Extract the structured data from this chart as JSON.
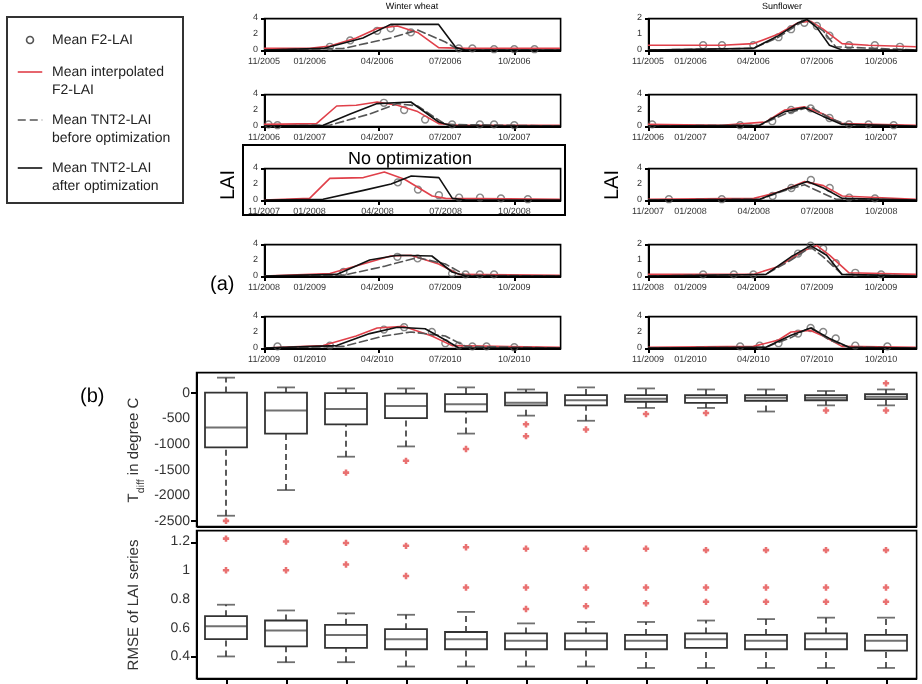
{
  "chart_data": [
    {
      "type": "line",
      "title": "Winter wheat",
      "legend": "left",
      "xlim": [
        "2005-11-01",
        "2006-12-01"
      ],
      "xticks": [
        {
          "value": "2005-11",
          "label": "11/2005"
        },
        {
          "value": "2006-01",
          "label": "01/2006"
        },
        {
          "value": "2006-04",
          "label": "04/2006"
        },
        {
          "value": "2006-07",
          "label": "07/2006"
        },
        {
          "value": "2006-10",
          "label": "10/2006"
        }
      ],
      "ylim": [
        0,
        4
      ],
      "yticks": [
        0,
        2,
        4
      ],
      "series": [
        {
          "name": "Mean F2-LAI",
          "type": "scatter",
          "marker": "circle",
          "color": "#555555",
          "x": [
            "2006-01-28",
            "2006-02-24",
            "2006-04-01",
            "2006-04-19",
            "2006-05-16",
            "2006-07-19",
            "2006-08-06",
            "2006-09-04",
            "2006-10-01",
            "2006-10-28"
          ],
          "values": [
            0.4,
            1.2,
            2.4,
            2.7,
            2.2,
            0.2,
            0.2,
            0.1,
            0.1,
            0.1
          ]
        },
        {
          "name": "Mean interpolated F2-LAI",
          "type": "line",
          "line_style": "solid",
          "color": "#e0404a",
          "x": [
            "2005-11-01",
            "2006-01-01",
            "2006-01-28",
            "2006-03-04",
            "2006-04-01",
            "2006-04-28",
            "2006-05-25",
            "2006-06-22",
            "2006-07-28",
            "2006-12-01"
          ],
          "values": [
            0.2,
            0.2,
            0.5,
            1.5,
            2.7,
            3.0,
            2.2,
            0.3,
            0.2,
            0.2
          ]
        },
        {
          "name": "Mean TNT2-LAI before optimization",
          "type": "line",
          "line_style": "dashed",
          "color": "#555555",
          "x": [
            "2005-11-01",
            "2006-02-15",
            "2006-04-19",
            "2006-05-25",
            "2006-07-01",
            "2006-07-19",
            "2006-12-01"
          ],
          "values": [
            0,
            0.2,
            1.5,
            2.5,
            1.0,
            0,
            0
          ]
        },
        {
          "name": "Mean TNT2-LAI after optimization",
          "type": "line",
          "line_style": "solid",
          "color": "#111111",
          "x": [
            "2005-11-01",
            "2006-01-19",
            "2006-03-13",
            "2006-04-19",
            "2006-06-22",
            "2006-07-15",
            "2006-07-28",
            "2006-12-01"
          ],
          "values": [
            0,
            0.2,
            1.5,
            3.2,
            3.2,
            0.3,
            0,
            0
          ]
        }
      ]
    },
    {
      "type": "line",
      "title": "Sunflower",
      "xlim": [
        "2005-11-01",
        "2006-11-20"
      ],
      "xticks": [
        {
          "value": "2005-11",
          "label": "11/2005"
        },
        {
          "value": "2006-01",
          "label": "01/2006"
        },
        {
          "value": "2006-04",
          "label": "04/2006"
        },
        {
          "value": "2006-07",
          "label": "07/2006"
        },
        {
          "value": "2006-10",
          "label": "10/2006"
        }
      ],
      "ylim": [
        0,
        2
      ],
      "yticks": [
        0,
        1,
        2
      ],
      "series": [
        {
          "type": "scatter",
          "marker": "circle",
          "color": "#555555",
          "x": [
            "2006-01-19",
            "2006-02-15",
            "2006-04-01",
            "2006-05-07",
            "2006-05-25",
            "2006-06-13",
            "2006-07-01",
            "2006-07-19",
            "2006-08-16",
            "2006-09-22",
            "2006-10-28"
          ],
          "values": [
            0.3,
            0.3,
            0.3,
            0.8,
            1.3,
            1.7,
            1.5,
            0.9,
            0.3,
            0.3,
            0.2
          ]
        },
        {
          "type": "line",
          "line_style": "solid",
          "color": "#e0404a",
          "x": [
            "2005-11-01",
            "2006-02-15",
            "2006-04-01",
            "2006-05-07",
            "2006-06-04",
            "2006-06-22",
            "2006-07-10",
            "2006-08-06",
            "2006-09-13",
            "2006-11-20"
          ],
          "values": [
            0.3,
            0.3,
            0.4,
            1.0,
            1.7,
            1.8,
            1.3,
            0.4,
            0.3,
            0.2
          ]
        },
        {
          "type": "line",
          "line_style": "dashed",
          "color": "#555555",
          "x": [
            "2005-11-01",
            "2006-04-01",
            "2006-05-07",
            "2006-06-04",
            "2006-06-17",
            "2006-07-10",
            "2006-07-28",
            "2006-11-20"
          ],
          "values": [
            0,
            0.1,
            0.8,
            1.6,
            1.9,
            1.2,
            0.2,
            0
          ]
        },
        {
          "type": "line",
          "line_style": "solid",
          "color": "#111111",
          "x": [
            "2005-11-01",
            "2006-04-01",
            "2006-05-07",
            "2006-06-04",
            "2006-06-17",
            "2006-07-01",
            "2006-07-19",
            "2006-08-06",
            "2006-11-20"
          ],
          "values": [
            0,
            0.1,
            0.9,
            1.7,
            1.9,
            1.4,
            0.3,
            0,
            0
          ]
        }
      ]
    },
    {
      "type": "line",
      "xlim": [
        "2006-11-01",
        "2007-12-01"
      ],
      "xticks": [
        {
          "value": "2006-11",
          "label": "11/2006"
        },
        {
          "value": "2007-01",
          "label": "01/2007"
        },
        {
          "value": "2007-04",
          "label": "04/2007"
        },
        {
          "value": "2007-07",
          "label": "07/2007"
        },
        {
          "value": "2007-10",
          "label": "10/2007"
        }
      ],
      "ylim": [
        0,
        4
      ],
      "yticks": [
        0,
        2,
        4
      ],
      "series": [
        {
          "type": "scatter",
          "marker": "circle",
          "color": "#555555",
          "x": [
            "2006-11-07",
            "2006-11-19",
            "2007-04-10",
            "2007-05-07",
            "2007-06-04",
            "2007-07-10",
            "2007-08-16",
            "2007-09-04",
            "2007-10-01"
          ],
          "values": [
            0.2,
            0.1,
            2.9,
            2.0,
            0.8,
            0.2,
            0.2,
            0.2,
            0.1
          ]
        },
        {
          "type": "line",
          "line_style": "solid",
          "color": "#e0404a",
          "x": [
            "2006-11-01",
            "2007-01-10",
            "2007-02-06",
            "2007-03-04",
            "2007-04-01",
            "2007-04-28",
            "2007-05-25",
            "2007-06-22",
            "2007-07-19",
            "2007-12-01"
          ],
          "values": [
            0.2,
            0.3,
            2.5,
            2.6,
            3.0,
            2.6,
            1.8,
            0.3,
            0.1,
            0.1
          ]
        },
        {
          "type": "line",
          "line_style": "dashed",
          "color": "#555555",
          "x": [
            "2006-11-01",
            "2007-01-28",
            "2007-03-22",
            "2007-04-28",
            "2007-05-25",
            "2007-07-01",
            "2007-12-01"
          ],
          "values": [
            0,
            0.1,
            1.5,
            2.8,
            2.5,
            0.2,
            0
          ]
        },
        {
          "type": "line",
          "line_style": "solid",
          "color": "#111111",
          "x": [
            "2006-11-01",
            "2007-01-19",
            "2007-02-24",
            "2007-04-01",
            "2007-05-16",
            "2007-06-22",
            "2007-07-10",
            "2007-12-01"
          ],
          "values": [
            0,
            0.1,
            1.5,
            2.8,
            3.0,
            0.5,
            0,
            0
          ]
        }
      ]
    },
    {
      "type": "line",
      "xlim": [
        "2006-11-01",
        "2007-11-20"
      ],
      "xticks": [
        {
          "value": "2006-11",
          "label": "11/2006"
        },
        {
          "value": "2007-01",
          "label": "01/2007"
        },
        {
          "value": "2007-04",
          "label": "04/2007"
        },
        {
          "value": "2007-07",
          "label": "07/2007"
        },
        {
          "value": "2007-10",
          "label": "10/2007"
        }
      ],
      "ylim": [
        0,
        4
      ],
      "yticks": [
        0,
        2,
        4
      ],
      "series": [
        {
          "type": "scatter",
          "marker": "circle",
          "color": "#555555",
          "x": [
            "2006-11-07",
            "2007-03-13",
            "2007-04-28",
            "2007-05-25",
            "2007-06-22",
            "2007-07-19",
            "2007-08-16",
            "2007-09-13",
            "2007-10-19"
          ],
          "values": [
            0.2,
            0.1,
            0.6,
            2.0,
            2.2,
            1.0,
            0.2,
            0.2,
            0.1
          ]
        },
        {
          "type": "line",
          "line_style": "solid",
          "color": "#e0404a",
          "x": [
            "2006-11-01",
            "2007-02-15",
            "2007-04-19",
            "2007-05-16",
            "2007-06-13",
            "2007-07-10",
            "2007-08-06",
            "2007-11-20"
          ],
          "values": [
            0.2,
            0.1,
            0.5,
            2.0,
            2.4,
            1.5,
            0.3,
            0.1
          ]
        },
        {
          "type": "line",
          "line_style": "dashed",
          "color": "#555555",
          "x": [
            "2006-11-01",
            "2007-04-10",
            "2007-05-16",
            "2007-06-22",
            "2007-07-19",
            "2007-08-16",
            "2007-11-20"
          ],
          "values": [
            0,
            0.1,
            1.5,
            2.4,
            1.0,
            0.1,
            0
          ]
        },
        {
          "type": "line",
          "line_style": "solid",
          "color": "#111111",
          "x": [
            "2006-11-01",
            "2007-04-10",
            "2007-05-16",
            "2007-06-13",
            "2007-07-10",
            "2007-08-06",
            "2007-11-20"
          ],
          "values": [
            0,
            0.1,
            1.8,
            2.3,
            1.2,
            0.2,
            0
          ]
        }
      ]
    },
    {
      "type": "line",
      "ylabel": "LAI",
      "annotations": [
        "No optimization"
      ],
      "xlim": [
        "2007-11-01",
        "2008-12-01"
      ],
      "xticks": [
        {
          "value": "2007-11",
          "label": "11/2007"
        },
        {
          "value": "2008-01",
          "label": "01/2008"
        },
        {
          "value": "2008-04",
          "label": "04/2008"
        },
        {
          "value": "2008-07",
          "label": "07/2008"
        },
        {
          "value": "2008-10",
          "label": "10/2008"
        }
      ],
      "ylim": [
        0,
        4
      ],
      "yticks": [
        0,
        2,
        4
      ],
      "series": [
        {
          "type": "scatter",
          "marker": "circle",
          "color": "#555555",
          "x": [
            "2008-04-28",
            "2008-05-25",
            "2008-06-22",
            "2008-07-19",
            "2008-08-16",
            "2008-09-13",
            "2008-10-19"
          ],
          "values": [
            2.2,
            1.3,
            0.6,
            0.3,
            0.3,
            0.2,
            0.1
          ]
        },
        {
          "type": "line",
          "line_style": "solid",
          "color": "#e0404a",
          "x": [
            "2007-11-01",
            "2008-01-01",
            "2008-01-28",
            "2008-03-13",
            "2008-04-10",
            "2008-05-07",
            "2008-06-13",
            "2008-07-01",
            "2008-12-01"
          ],
          "values": [
            0,
            0.2,
            2.7,
            2.8,
            3.5,
            2.6,
            0.5,
            0.2,
            0.1
          ]
        },
        {
          "type": "line",
          "line_style": "solid",
          "color": "#111111",
          "x": [
            "2007-11-01",
            "2008-01-19",
            "2008-03-13",
            "2008-04-19",
            "2008-05-16",
            "2008-06-22",
            "2008-07-10",
            "2008-07-28",
            "2008-12-01"
          ],
          "values": [
            0,
            0.1,
            1.2,
            2.0,
            3.0,
            2.8,
            0.2,
            0,
            0
          ]
        }
      ]
    },
    {
      "type": "line",
      "ylabel": "LAI",
      "xlim": [
        "2007-11-01",
        "2008-11-20"
      ],
      "xticks": [
        {
          "value": "2007-11",
          "label": "11/2007"
        },
        {
          "value": "2008-01",
          "label": "01/2008"
        },
        {
          "value": "2008-04",
          "label": "04/2008"
        },
        {
          "value": "2008-07",
          "label": "07/2008"
        },
        {
          "value": "2008-10",
          "label": "10/2008"
        }
      ],
      "ylim": [
        0,
        4
      ],
      "yticks": [
        0,
        2,
        4
      ],
      "series": [
        {
          "type": "scatter",
          "marker": "circle",
          "color": "#555555",
          "x": [
            "2007-12-01",
            "2008-02-15",
            "2008-04-28",
            "2008-05-25",
            "2008-06-22",
            "2008-07-19",
            "2008-08-16",
            "2008-09-22"
          ],
          "values": [
            0.1,
            0.1,
            0.5,
            1.5,
            2.5,
            1.5,
            0.3,
            0.2
          ]
        },
        {
          "type": "line",
          "line_style": "solid",
          "color": "#e0404a",
          "x": [
            "2007-11-01",
            "2008-04-01",
            "2008-05-07",
            "2008-06-13",
            "2008-07-10",
            "2008-08-06",
            "2008-11-20"
          ],
          "values": [
            0.1,
            0.2,
            1.0,
            2.3,
            1.8,
            0.5,
            0.1
          ]
        },
        {
          "type": "line",
          "line_style": "dashed",
          "color": "#555555",
          "x": [
            "2007-11-01",
            "2008-04-10",
            "2008-05-16",
            "2008-06-13",
            "2008-07-10",
            "2008-07-28",
            "2008-11-20"
          ],
          "values": [
            0,
            0.1,
            1.2,
            1.9,
            0.8,
            0.1,
            0
          ]
        },
        {
          "type": "line",
          "line_style": "solid",
          "color": "#111111",
          "x": [
            "2007-11-01",
            "2008-04-10",
            "2008-05-16",
            "2008-06-17",
            "2008-07-10",
            "2008-08-06",
            "2008-11-20"
          ],
          "values": [
            0,
            0.1,
            1.3,
            2.3,
            1.5,
            0.2,
            0
          ]
        }
      ]
    },
    {
      "type": "line",
      "annotations": [
        "(a)"
      ],
      "xlim": [
        "2008-11-01",
        "2009-12-01"
      ],
      "xticks": [
        {
          "value": "2008-11",
          "label": "11/2008"
        },
        {
          "value": "2009-01",
          "label": "01/2009"
        },
        {
          "value": "2009-04",
          "label": "04/2009"
        },
        {
          "value": "2009-07",
          "label": "07/2009"
        },
        {
          "value": "2009-10",
          "label": "10/2009"
        }
      ],
      "ylim": [
        0,
        4
      ],
      "yticks": [
        0,
        2,
        4
      ],
      "series": [
        {
          "type": "scatter",
          "marker": "circle",
          "color": "#555555",
          "x": [
            "2009-02-15",
            "2009-04-28",
            "2009-05-25",
            "2009-07-10",
            "2009-07-28",
            "2009-08-16",
            "2009-09-04"
          ],
          "values": [
            0.5,
            2.4,
            2.2,
            0.3,
            0.2,
            0.2,
            0.2
          ]
        },
        {
          "type": "line",
          "line_style": "solid",
          "color": "#e0404a",
          "x": [
            "2008-11-01",
            "2009-01-28",
            "2009-03-13",
            "2009-04-19",
            "2009-05-16",
            "2009-06-22",
            "2009-07-19",
            "2009-12-01"
          ],
          "values": [
            0,
            0.3,
            1.5,
            2.5,
            2.6,
            1.5,
            0.2,
            0.1
          ]
        },
        {
          "type": "line",
          "line_style": "dashed",
          "color": "#555555",
          "x": [
            "2008-11-01",
            "2009-02-15",
            "2009-04-10",
            "2009-05-25",
            "2009-07-01",
            "2009-07-28",
            "2009-12-01"
          ],
          "values": [
            0,
            0.1,
            1.2,
            2.3,
            1.5,
            0.1,
            0
          ]
        },
        {
          "type": "line",
          "line_style": "solid",
          "color": "#111111",
          "x": [
            "2008-11-01",
            "2009-02-06",
            "2009-03-22",
            "2009-04-28",
            "2009-06-13",
            "2009-07-10",
            "2009-07-28",
            "2009-12-01"
          ],
          "values": [
            0,
            0.2,
            2.0,
            2.6,
            2.5,
            0.5,
            0,
            0
          ]
        }
      ]
    },
    {
      "type": "line",
      "xlim": [
        "2008-11-01",
        "2009-11-20"
      ],
      "xticks": [
        {
          "value": "2008-11",
          "label": "11/2008"
        },
        {
          "value": "2009-01",
          "label": "01/2009"
        },
        {
          "value": "2009-04",
          "label": "04/2009"
        },
        {
          "value": "2009-07",
          "label": "07/2009"
        },
        {
          "value": "2009-10",
          "label": "10/2009"
        }
      ],
      "ylim": [
        0,
        2
      ],
      "yticks": [
        0,
        1,
        2
      ],
      "series": [
        {
          "type": "scatter",
          "marker": "circle",
          "color": "#555555",
          "x": [
            "2009-01-19",
            "2009-03-04",
            "2009-04-01",
            "2009-06-04",
            "2009-06-22",
            "2009-07-10",
            "2009-07-28",
            "2009-08-25",
            "2009-10-01"
          ],
          "values": [
            0.1,
            0.1,
            0.1,
            1.4,
            1.9,
            1.7,
            0.8,
            0.2,
            0.1
          ]
        },
        {
          "type": "line",
          "line_style": "solid",
          "color": "#e0404a",
          "x": [
            "2008-11-01",
            "2009-04-01",
            "2009-05-07",
            "2009-06-13",
            "2009-07-01",
            "2009-07-19",
            "2009-08-16",
            "2009-11-20"
          ],
          "values": [
            0.1,
            0.1,
            0.6,
            1.6,
            1.9,
            1.3,
            0.2,
            0.1
          ]
        },
        {
          "type": "line",
          "line_style": "dashed",
          "color": "#555555",
          "x": [
            "2008-11-01",
            "2009-04-19",
            "2009-05-25",
            "2009-06-22",
            "2009-07-10",
            "2009-08-06",
            "2009-11-20"
          ],
          "values": [
            0,
            0.1,
            1.0,
            1.8,
            1.2,
            0.1,
            0
          ]
        },
        {
          "type": "line",
          "line_style": "solid",
          "color": "#111111",
          "x": [
            "2008-11-01",
            "2009-04-19",
            "2009-05-25",
            "2009-06-22",
            "2009-07-15",
            "2009-08-06",
            "2009-11-20"
          ],
          "values": [
            0,
            0.1,
            1.2,
            1.9,
            1.3,
            0.1,
            0
          ]
        }
      ]
    },
    {
      "type": "line",
      "xlim": [
        "2009-11-01",
        "2010-12-01"
      ],
      "xticks": [
        {
          "value": "2009-11",
          "label": "11/2009"
        },
        {
          "value": "2010-01",
          "label": "01/2010"
        },
        {
          "value": "2010-04",
          "label": "04/2010"
        },
        {
          "value": "2010-07",
          "label": "07/2010"
        },
        {
          "value": "2010-10",
          "label": "10/2010"
        }
      ],
      "ylim": [
        0,
        4
      ],
      "yticks": [
        0,
        2,
        4
      ],
      "series": [
        {
          "type": "scatter",
          "marker": "circle",
          "color": "#555555",
          "x": [
            "2009-11-19",
            "2010-01-28",
            "2010-04-10",
            "2010-05-07",
            "2010-06-13",
            "2010-07-01",
            "2010-07-19",
            "2010-08-06",
            "2010-08-25",
            "2010-10-01"
          ],
          "values": [
            0.2,
            0.3,
            2.3,
            2.6,
            2.0,
            0.6,
            0.3,
            0.2,
            0.2,
            0.1
          ]
        },
        {
          "type": "line",
          "line_style": "solid",
          "color": "#e0404a",
          "x": [
            "2009-11-01",
            "2010-01-19",
            "2010-03-04",
            "2010-04-01",
            "2010-05-07",
            "2010-06-13",
            "2010-07-10",
            "2010-12-01"
          ],
          "values": [
            0,
            0.3,
            1.5,
            2.5,
            2.7,
            1.5,
            0.3,
            0.1
          ]
        },
        {
          "type": "line",
          "line_style": "dashed",
          "color": "#555555",
          "x": [
            "2009-11-01",
            "2010-02-15",
            "2010-04-10",
            "2010-05-16",
            "2010-07-01",
            "2010-07-28",
            "2010-12-01"
          ],
          "values": [
            0,
            0.2,
            1.5,
            2.0,
            1.5,
            0.2,
            0
          ]
        },
        {
          "type": "line",
          "line_style": "solid",
          "color": "#111111",
          "x": [
            "2009-11-01",
            "2010-02-06",
            "2010-03-22",
            "2010-04-28",
            "2010-06-04",
            "2010-07-01",
            "2010-07-19",
            "2010-12-01"
          ],
          "values": [
            0,
            0.3,
            1.8,
            2.6,
            2.4,
            1.0,
            0,
            0
          ]
        }
      ]
    },
    {
      "type": "line",
      "xlim": [
        "2009-11-01",
        "2010-11-20"
      ],
      "xticks": [
        {
          "value": "2009-11",
          "label": "11/2009"
        },
        {
          "value": "2010-01",
          "label": "01/2010"
        },
        {
          "value": "2010-04",
          "label": "04/2010"
        },
        {
          "value": "2010-07",
          "label": "07/2010"
        },
        {
          "value": "2010-10",
          "label": "10/2010"
        }
      ],
      "ylim": [
        0,
        4
      ],
      "yticks": [
        0,
        2,
        4
      ],
      "series": [
        {
          "type": "scatter",
          "marker": "circle",
          "color": "#555555",
          "x": [
            "2010-03-13",
            "2010-04-10",
            "2010-05-07",
            "2010-06-04",
            "2010-06-22",
            "2010-07-10",
            "2010-07-28",
            "2010-08-25",
            "2010-10-10"
          ],
          "values": [
            0.2,
            0.3,
            0.6,
            1.8,
            2.5,
            2.0,
            1.2,
            0.3,
            0.2
          ]
        },
        {
          "type": "line",
          "line_style": "solid",
          "color": "#e0404a",
          "x": [
            "2009-11-01",
            "2010-04-01",
            "2010-05-07",
            "2010-05-25",
            "2010-06-22",
            "2010-07-10",
            "2010-08-06",
            "2010-11-20"
          ],
          "values": [
            0.1,
            0.2,
            1.0,
            2.0,
            2.2,
            1.5,
            0.2,
            0.1
          ]
        },
        {
          "type": "line",
          "line_style": "dashed",
          "color": "#555555",
          "x": [
            "2009-11-01",
            "2010-04-19",
            "2010-05-25",
            "2010-06-22",
            "2010-07-19",
            "2010-08-16",
            "2010-11-20"
          ],
          "values": [
            0,
            0.1,
            1.3,
            2.6,
            1.0,
            0.1,
            0
          ]
        },
        {
          "type": "line",
          "line_style": "solid",
          "color": "#111111",
          "x": [
            "2009-11-01",
            "2010-04-19",
            "2010-05-25",
            "2010-06-22",
            "2010-07-19",
            "2010-08-16",
            "2010-11-20"
          ],
          "values": [
            0,
            0.1,
            1.6,
            2.5,
            1.2,
            0.1,
            0
          ]
        }
      ]
    },
    {
      "type": "box",
      "ylabel": "T$_{diff}$ in degree C",
      "annotations": [
        "(b)"
      ],
      "tick_labels": "y",
      "categories": [
        null,
        null,
        null,
        null,
        null,
        null,
        null,
        null,
        null,
        null,
        null,
        null
      ],
      "ylim": [
        -2600,
        400
      ],
      "yticks": [
        0,
        -500,
        -1000,
        -1500,
        -2000,
        -2500
      ],
      "series": [
        {
          "color": "#333333",
          "boxes": [
            {
              "low": -2400,
              "q1": -1070,
              "median": -680,
              "q3": 0,
              "high": 290,
              "outliers": [
                -2500
              ]
            },
            {
              "low": -1900,
              "q1": -800,
              "median": -350,
              "q3": 0,
              "high": 100
            },
            {
              "low": -1250,
              "q1": -620,
              "median": -320,
              "q3": -10,
              "high": 80,
              "outliers": [
                -1560
              ]
            },
            {
              "low": -1050,
              "q1": -500,
              "median": -260,
              "q3": -20,
              "high": 80,
              "outliers": [
                -1330
              ]
            },
            {
              "low": -800,
              "q1": -370,
              "median": -230,
              "q3": -30,
              "high": 100,
              "outliers": [
                -1100
              ]
            },
            {
              "low": -450,
              "q1": -250,
              "median": -200,
              "q3": 0,
              "high": 60,
              "outliers": [
                -620,
                -850
              ]
            },
            {
              "low": -550,
              "q1": -250,
              "median": -150,
              "q3": -50,
              "high": 100,
              "outliers": [
                -720
              ]
            },
            {
              "low": -300,
              "q1": -180,
              "median": -120,
              "q3": -50,
              "high": 80,
              "outliers": [
                -420
              ]
            },
            {
              "low": -300,
              "q1": -200,
              "median": -100,
              "q3": -50,
              "high": 60,
              "outliers": [
                -400
              ]
            },
            {
              "low": -370,
              "q1": -160,
              "median": -100,
              "q3": -50,
              "high": 60
            },
            {
              "low": -250,
              "q1": -150,
              "median": -100,
              "q3": -50,
              "high": 30,
              "outliers": [
                -350
              ]
            },
            {
              "low": -250,
              "q1": -130,
              "median": -80,
              "q3": -30,
              "high": 60,
              "outliers": [
                -350,
                180
              ]
            }
          ]
        }
      ]
    },
    {
      "type": "box",
      "ylabel": "RMSE of LAI series",
      "tick_labels": "y",
      "categories": [
        null,
        null,
        null,
        null,
        null,
        null,
        null,
        null,
        null,
        null,
        null,
        null
      ],
      "ylim": [
        0.25,
        1.28
      ],
      "yticks": [
        0.4,
        0.6,
        0.8,
        1,
        1.2
      ],
      "series": [
        {
          "color": "#333333",
          "boxes": [
            {
              "low": 0.4,
              "q1": 0.52,
              "median": 0.61,
              "q3": 0.68,
              "high": 0.76,
              "outliers": [
                1.0,
                1.22
              ]
            },
            {
              "low": 0.36,
              "q1": 0.47,
              "median": 0.58,
              "q3": 0.65,
              "high": 0.72,
              "outliers": [
                1.0,
                1.2
              ]
            },
            {
              "low": 0.36,
              "q1": 0.46,
              "median": 0.55,
              "q3": 0.62,
              "high": 0.7,
              "outliers": [
                1.04,
                1.19
              ]
            },
            {
              "low": 0.33,
              "q1": 0.45,
              "median": 0.52,
              "q3": 0.59,
              "high": 0.69,
              "outliers": [
                0.96,
                1.17
              ]
            },
            {
              "low": 0.33,
              "q1": 0.45,
              "median": 0.52,
              "q3": 0.57,
              "high": 0.71,
              "outliers": [
                0.88,
                1.16
              ]
            },
            {
              "low": 0.33,
              "q1": 0.45,
              "median": 0.51,
              "q3": 0.56,
              "high": 0.63,
              "outliers": [
                0.73,
                0.88,
                1.15
              ]
            },
            {
              "low": 0.33,
              "q1": 0.45,
              "median": 0.51,
              "q3": 0.56,
              "high": 0.64,
              "outliers": [
                0.75,
                0.88,
                1.15
              ]
            },
            {
              "low": 0.32,
              "q1": 0.45,
              "median": 0.51,
              "q3": 0.55,
              "high": 0.64,
              "outliers": [
                0.77,
                0.88,
                1.15
              ]
            },
            {
              "low": 0.32,
              "q1": 0.46,
              "median": 0.52,
              "q3": 0.56,
              "high": 0.65,
              "outliers": [
                0.78,
                0.88,
                1.14
              ]
            },
            {
              "low": 0.32,
              "q1": 0.45,
              "median": 0.51,
              "q3": 0.55,
              "high": 0.66,
              "outliers": [
                0.78,
                0.88,
                1.14
              ]
            },
            {
              "low": 0.32,
              "q1": 0.45,
              "median": 0.52,
              "q3": 0.56,
              "high": 0.67,
              "outliers": [
                0.78,
                0.88,
                1.14
              ]
            },
            {
              "low": 0.32,
              "q1": 0.44,
              "median": 0.51,
              "q3": 0.55,
              "high": 0.67,
              "outliers": [
                0.78,
                0.88,
                1.14
              ]
            }
          ]
        }
      ]
    }
  ]
}
